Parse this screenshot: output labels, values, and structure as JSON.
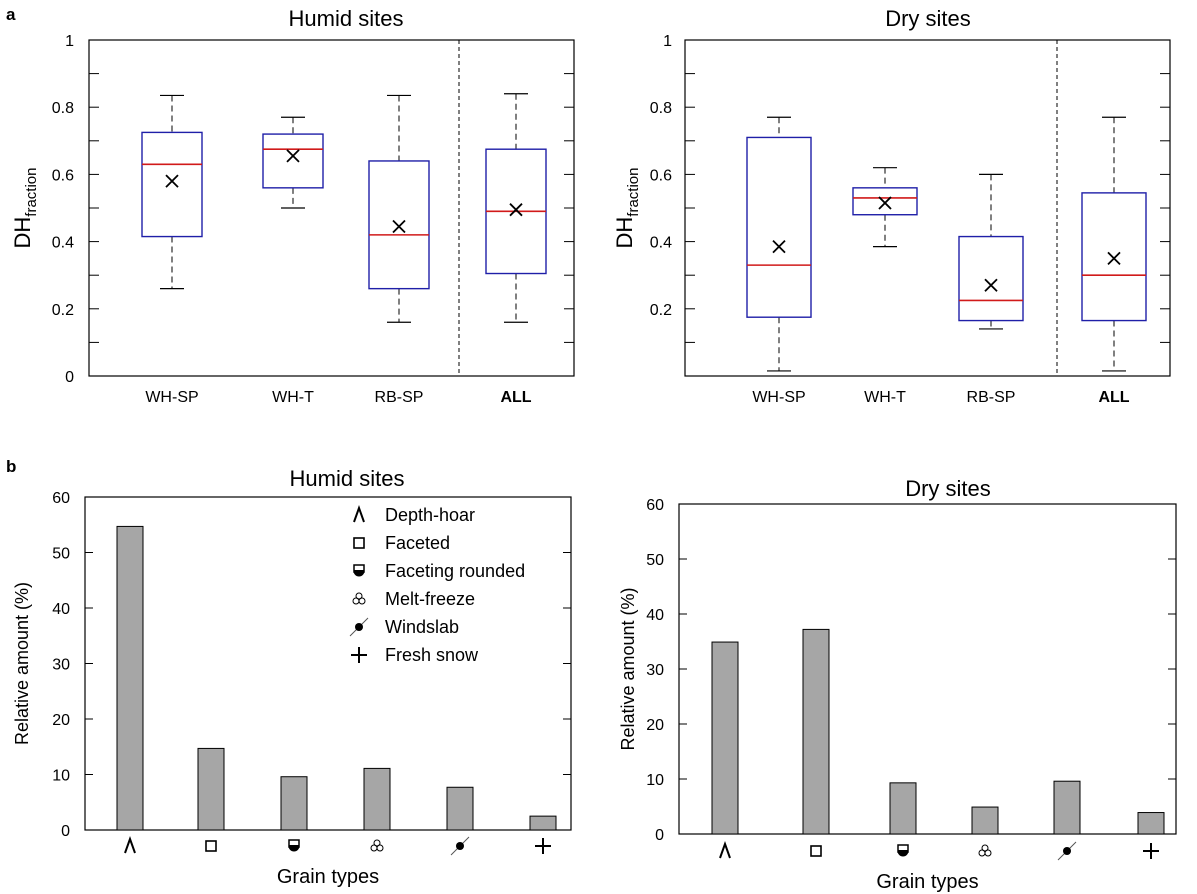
{
  "panel_labels": [
    "a",
    "b"
  ],
  "colors": {
    "box_edge": "#1f1fa8",
    "median": "#d11a1a",
    "bar_fill": "#a6a6a6",
    "bar_edge": "#000000",
    "axis": "#000000"
  },
  "chart_data": [
    {
      "type": "box",
      "title": "Humid sites",
      "ylabel_main": "DH",
      "ylabel_sub": "fraction",
      "ylim": [
        0,
        1
      ],
      "yticks": [
        "0",
        "0.2",
        "0.4",
        "0.6",
        "0.8",
        "1"
      ],
      "categories": [
        "WH-SP",
        "WH-T",
        "RB-SP",
        "ALL"
      ],
      "boxes": [
        {
          "whisker_low": 0.26,
          "q1": 0.415,
          "median": 0.63,
          "q3": 0.725,
          "whisker_high": 0.835,
          "mean": 0.58
        },
        {
          "whisker_low": 0.5,
          "q1": 0.56,
          "median": 0.675,
          "q3": 0.72,
          "whisker_high": 0.77,
          "mean": 0.655
        },
        {
          "whisker_low": 0.16,
          "q1": 0.26,
          "median": 0.42,
          "q3": 0.64,
          "whisker_high": 0.835,
          "mean": 0.445
        },
        {
          "whisker_low": 0.16,
          "q1": 0.305,
          "median": 0.49,
          "q3": 0.675,
          "whisker_high": 0.84,
          "mean": 0.495
        }
      ],
      "separator_after_index": 2
    },
    {
      "type": "box",
      "title": "Dry sites",
      "ylabel_main": "DH",
      "ylabel_sub": "fraction",
      "ylim": [
        0,
        1
      ],
      "yticks": [
        "0.2",
        "0.4",
        "0.6",
        "0.8",
        "1"
      ],
      "categories": [
        "WH-SP",
        "WH-T",
        "RB-SP",
        "ALL"
      ],
      "boxes": [
        {
          "whisker_low": 0.015,
          "q1": 0.175,
          "median": 0.33,
          "q3": 0.71,
          "whisker_high": 0.77,
          "mean": 0.385
        },
        {
          "whisker_low": 0.385,
          "q1": 0.48,
          "median": 0.53,
          "q3": 0.56,
          "whisker_high": 0.62,
          "mean": 0.515
        },
        {
          "whisker_low": 0.14,
          "q1": 0.165,
          "median": 0.225,
          "q3": 0.415,
          "whisker_high": 0.6,
          "mean": 0.27
        },
        {
          "whisker_low": 0.015,
          "q1": 0.165,
          "median": 0.3,
          "q3": 0.545,
          "whisker_high": 0.77,
          "mean": 0.35
        }
      ],
      "separator_after_index": 2
    },
    {
      "type": "bar",
      "title": "Humid sites",
      "ylabel": "Relative amount (%)",
      "xlabel": "Grain types",
      "ylim": [
        0,
        60
      ],
      "yticks": [
        "0",
        "10",
        "20",
        "30",
        "40",
        "50",
        "60"
      ],
      "categories": [
        "depth-hoar-icon",
        "faceted-icon",
        "faceting-rounded-icon",
        "melt-freeze-icon",
        "windslab-icon",
        "fresh-snow-icon"
      ],
      "values": [
        54.7,
        14.7,
        9.6,
        11.1,
        7.7,
        2.5
      ],
      "legend": [
        {
          "icon": "depth-hoar-icon",
          "label": "Depth-hoar"
        },
        {
          "icon": "faceted-icon",
          "label": "Faceted"
        },
        {
          "icon": "faceting-rounded-icon",
          "label": "Faceting rounded"
        },
        {
          "icon": "melt-freeze-icon",
          "label": "Melt-freeze"
        },
        {
          "icon": "windslab-icon",
          "label": "Windslab"
        },
        {
          "icon": "fresh-snow-icon",
          "label": "Fresh snow"
        }
      ]
    },
    {
      "type": "bar",
      "title": "Dry sites",
      "ylabel": "Relative amount (%)",
      "xlabel": "Grain types",
      "ylim": [
        0,
        60
      ],
      "yticks": [
        "0",
        "10",
        "20",
        "30",
        "40",
        "50",
        "60"
      ],
      "categories": [
        "depth-hoar-icon",
        "faceted-icon",
        "faceting-rounded-icon",
        "melt-freeze-icon",
        "windslab-icon",
        "fresh-snow-icon"
      ],
      "values": [
        34.9,
        37.2,
        9.3,
        4.9,
        9.6,
        3.9
      ]
    }
  ]
}
